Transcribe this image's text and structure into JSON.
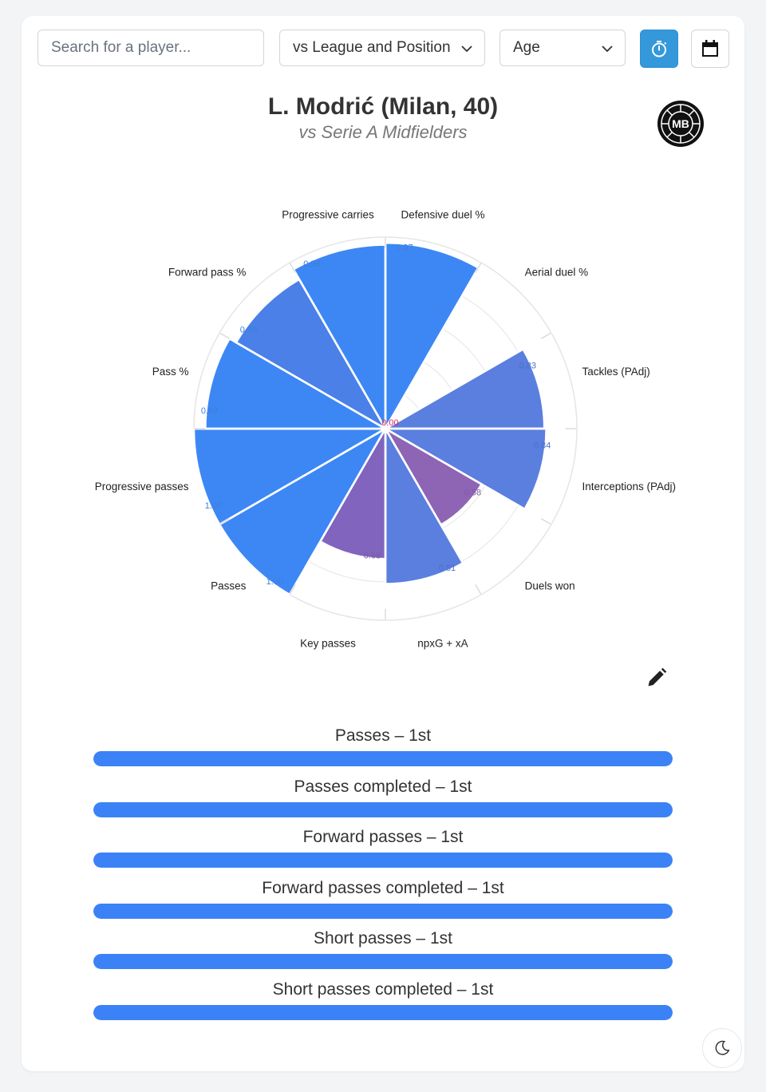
{
  "search": {
    "placeholder": "Search for a player..."
  },
  "filters": {
    "comparison": "vs League and Position",
    "age": "Age"
  },
  "header": {
    "title": "L. Modrić (Milan, 40)",
    "subtitle": "vs Serie A Midfielders",
    "logo_text": "MB"
  },
  "chart_data": {
    "type": "polar-bar",
    "categories": [
      "Defensive duel %",
      "Aerial duel %",
      "Tackles (PAdj)",
      "Interceptions (PAdj)",
      "Duels won",
      "npxG + xA",
      "Key passes",
      "Passes",
      "Progressive passes",
      "Pass %",
      "Forward pass %",
      "Progressive carries"
    ],
    "values": [
      0.97,
      0.0,
      0.83,
      0.84,
      0.58,
      0.81,
      0.68,
      1.0,
      1.0,
      0.94,
      0.9,
      0.96
    ],
    "value_labels": [
      "0.97",
      "0.00",
      "0.83",
      "0.84",
      "0.58",
      "0.81",
      "0.68",
      "1.00",
      "1.00",
      "0.94",
      "0.90",
      "0.96"
    ],
    "range": [
      0,
      1
    ],
    "colors": [
      "#3d87f5",
      "#3d87f5",
      "#5b7fdf",
      "#5b7fdf",
      "#8e64b5",
      "#5b7fdf",
      "#8064bd",
      "#3d87f5",
      "#3d87f5",
      "#3d87f5",
      "#4a80e8",
      "#3d87f5"
    ],
    "label_colors": [
      "#3d7fd8",
      "#e0245e",
      "#4d6fc9",
      "#4d6fc9",
      "#7e5aa8",
      "#4d6fc9",
      "#7e5aa8",
      "#3d7fd8",
      "#3d7fd8",
      "#3d7fd8",
      "#3d7fd8",
      "#3d7fd8"
    ],
    "grid": true
  },
  "rankings": [
    {
      "label": "Passes – 1st",
      "fill": 1.0
    },
    {
      "label": "Passes completed – 1st",
      "fill": 1.0
    },
    {
      "label": "Forward passes – 1st",
      "fill": 1.0
    },
    {
      "label": "Forward passes completed – 1st",
      "fill": 1.0
    },
    {
      "label": "Short passes – 1st",
      "fill": 1.0
    },
    {
      "label": "Short passes completed – 1st",
      "fill": 1.0
    }
  ],
  "colors": {
    "accent": "#3498db",
    "bar": "#3b82f6"
  },
  "icons": {
    "timer": "stopwatch-icon",
    "calendar": "calendar-icon",
    "edit": "pencil-icon",
    "theme": "moon-icon"
  }
}
